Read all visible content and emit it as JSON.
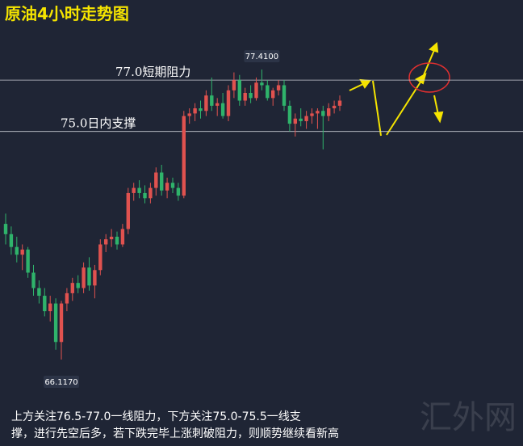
{
  "chart_data": {
    "type": "candlestick",
    "title": "原油4小时走势图",
    "open": [
      71.4,
      71.0,
      70.5,
      70.2,
      70.4,
      69.5,
      68.9,
      68.6,
      68.0,
      68.3,
      66.8,
      68.3,
      68.7,
      69.1,
      68.9,
      69.7,
      69.0,
      69.6,
      70.6,
      70.8,
      70.9,
      70.6,
      71.2,
      72.6,
      72.8,
      72.6,
      72.4,
      72.8,
      73.4,
      72.7,
      73.0,
      72.8,
      72.5,
      75.6,
      75.7,
      75.9,
      75.8,
      76.4,
      76.0,
      76.1,
      75.6,
      76.6,
      77.0,
      76.2,
      76.5,
      76.3,
      76.9,
      76.8,
      76.3,
      76.6,
      76.8,
      76.0,
      75.3,
      75.5,
      75.4,
      75.6,
      75.7,
      75.8,
      75.6,
      75.9,
      76.0
    ],
    "high": [
      71.8,
      71.3,
      70.9,
      70.6,
      70.5,
      69.8,
      69.2,
      68.9,
      68.6,
      68.5,
      68.4,
      68.9,
      69.3,
      69.4,
      69.9,
      70.1,
      69.8,
      70.8,
      71.0,
      71.2,
      71.1,
      71.4,
      72.8,
      73.0,
      73.1,
      72.9,
      73.0,
      73.6,
      73.7,
      73.2,
      73.2,
      73.0,
      75.8,
      75.9,
      76.1,
      76.2,
      76.6,
      77.1,
      76.3,
      76.5,
      76.8,
      77.3,
      77.2,
      76.7,
      76.8,
      77.1,
      77.41,
      77.0,
      76.7,
      77.0,
      77.0,
      76.2,
      75.7,
      75.9,
      75.8,
      75.9,
      75.9,
      76.0,
      76.1,
      76.2,
      76.4
    ],
    "low": [
      70.6,
      70.2,
      69.9,
      69.6,
      69.3,
      68.6,
      68.3,
      67.8,
      67.6,
      66.5,
      66.117,
      68.0,
      68.4,
      68.7,
      68.7,
      68.8,
      68.5,
      69.4,
      70.3,
      70.5,
      70.4,
      70.5,
      71.0,
      72.3,
      72.4,
      72.2,
      72.2,
      72.5,
      72.5,
      72.4,
      72.6,
      72.3,
      72.4,
      75.3,
      75.4,
      75.5,
      75.6,
      75.8,
      75.6,
      75.5,
      75.4,
      76.3,
      76.0,
      76.0,
      76.1,
      76.2,
      76.6,
      76.2,
      76.0,
      76.4,
      75.8,
      75.0,
      74.8,
      75.2,
      75.1,
      75.3,
      75.1,
      74.3,
      75.4,
      75.7,
      75.8
    ],
    "close": [
      71.0,
      70.5,
      70.2,
      70.4,
      69.5,
      68.9,
      68.6,
      68.0,
      68.3,
      66.8,
      68.3,
      68.7,
      69.1,
      68.9,
      69.7,
      69.0,
      69.6,
      70.6,
      70.8,
      70.9,
      70.6,
      71.2,
      72.6,
      72.8,
      72.6,
      72.4,
      72.8,
      73.4,
      72.7,
      73.0,
      72.8,
      72.5,
      75.6,
      75.7,
      75.9,
      75.8,
      76.4,
      76.0,
      76.1,
      75.6,
      76.6,
      77.0,
      76.2,
      76.5,
      76.3,
      76.9,
      76.8,
      76.3,
      76.6,
      76.8,
      76.0,
      75.3,
      75.5,
      75.4,
      75.6,
      75.7,
      75.8,
      75.6,
      75.9,
      76.0,
      76.2
    ],
    "up_color": "#e0524f",
    "down_color": "#2fb36b",
    "max_label": "77.4100",
    "min_label": "66.1170",
    "hlines": [
      {
        "value": 77.0,
        "label": "77.0短期阻力"
      },
      {
        "value": 75.0,
        "label": "75.0日内支撑"
      }
    ],
    "ylim": [
      64.7,
      78.86
    ],
    "note": "上方关注76.5-77.0一线阻力，下方关注75.0-75.5一线支撑，进行先空后多，若下跌完毕上涨刺破阻力，则顺势继续看新高",
    "watermark": "汇外网"
  }
}
